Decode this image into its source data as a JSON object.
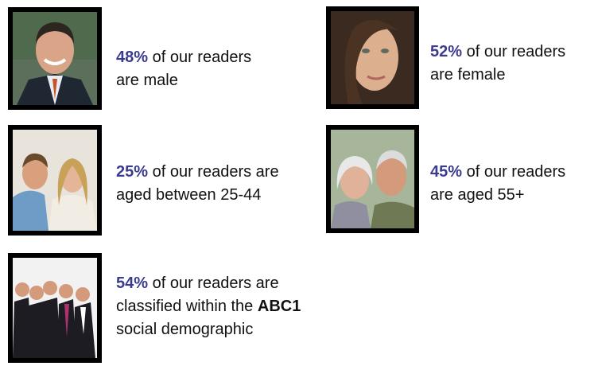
{
  "items": [
    {
      "stat": "48%",
      "lines": [
        "of our readers",
        "are male"
      ]
    },
    {
      "stat": "52%",
      "lines": [
        "of our readers",
        "are female"
      ]
    },
    {
      "stat": "25%",
      "lines": [
        "of our readers are",
        "aged between 25-44"
      ]
    },
    {
      "stat": "45%",
      "lines": [
        "of our readers",
        "are aged 55+"
      ]
    },
    {
      "stat": "54%",
      "lines": [
        "of our readers are",
        "classified within the",
        "ABC1",
        "social demographic"
      ]
    }
  ]
}
